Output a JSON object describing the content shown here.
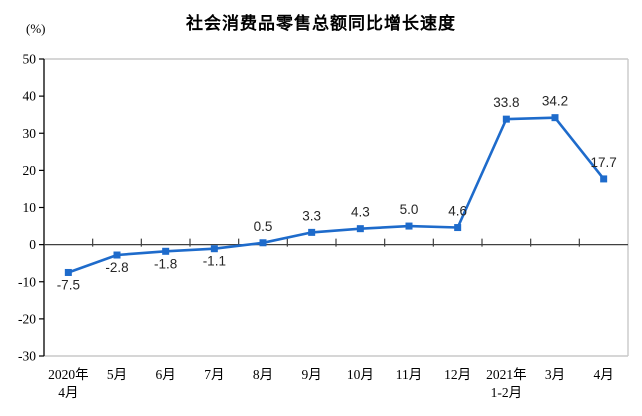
{
  "header": {
    "title": "社会消费品零售总额同比增长速度",
    "unit_label": "(%)"
  },
  "chart_data": {
    "type": "line",
    "title": "社会消费品零售总额同比增长速度",
    "ylabel": "(%)",
    "categories": [
      "2020年\n4月",
      "5月",
      "6月",
      "7月",
      "8月",
      "9月",
      "10月",
      "11月",
      "12月",
      "2021年\n1-2月",
      "3月",
      "4月"
    ],
    "values": [
      -7.5,
      -2.8,
      -1.8,
      -1.1,
      0.5,
      3.3,
      4.3,
      5.0,
      4.6,
      33.8,
      34.2,
      17.7
    ],
    "data_labels": [
      "-7.5",
      "-2.8",
      "-1.8",
      "-1.1",
      "0.5",
      "3.3",
      "4.3",
      "5.0",
      "4.6",
      "33.8",
      "34.2",
      "17.7"
    ],
    "label_side": [
      "below",
      "below",
      "below",
      "below",
      "above",
      "above",
      "above",
      "above",
      "above",
      "above",
      "above",
      "above"
    ],
    "y_ticks": [
      50,
      40,
      30,
      20,
      10,
      0,
      -10,
      -20,
      -30
    ],
    "ylim": [
      -30,
      50
    ],
    "grid": false,
    "legend": null,
    "marker": "square",
    "colors": {
      "line": "#1E6BCB",
      "axis": "#000000",
      "zero_line": "#404040",
      "plot_border": "#C9C9C9",
      "label_text": "#262626",
      "axis_text": "#000000"
    }
  }
}
